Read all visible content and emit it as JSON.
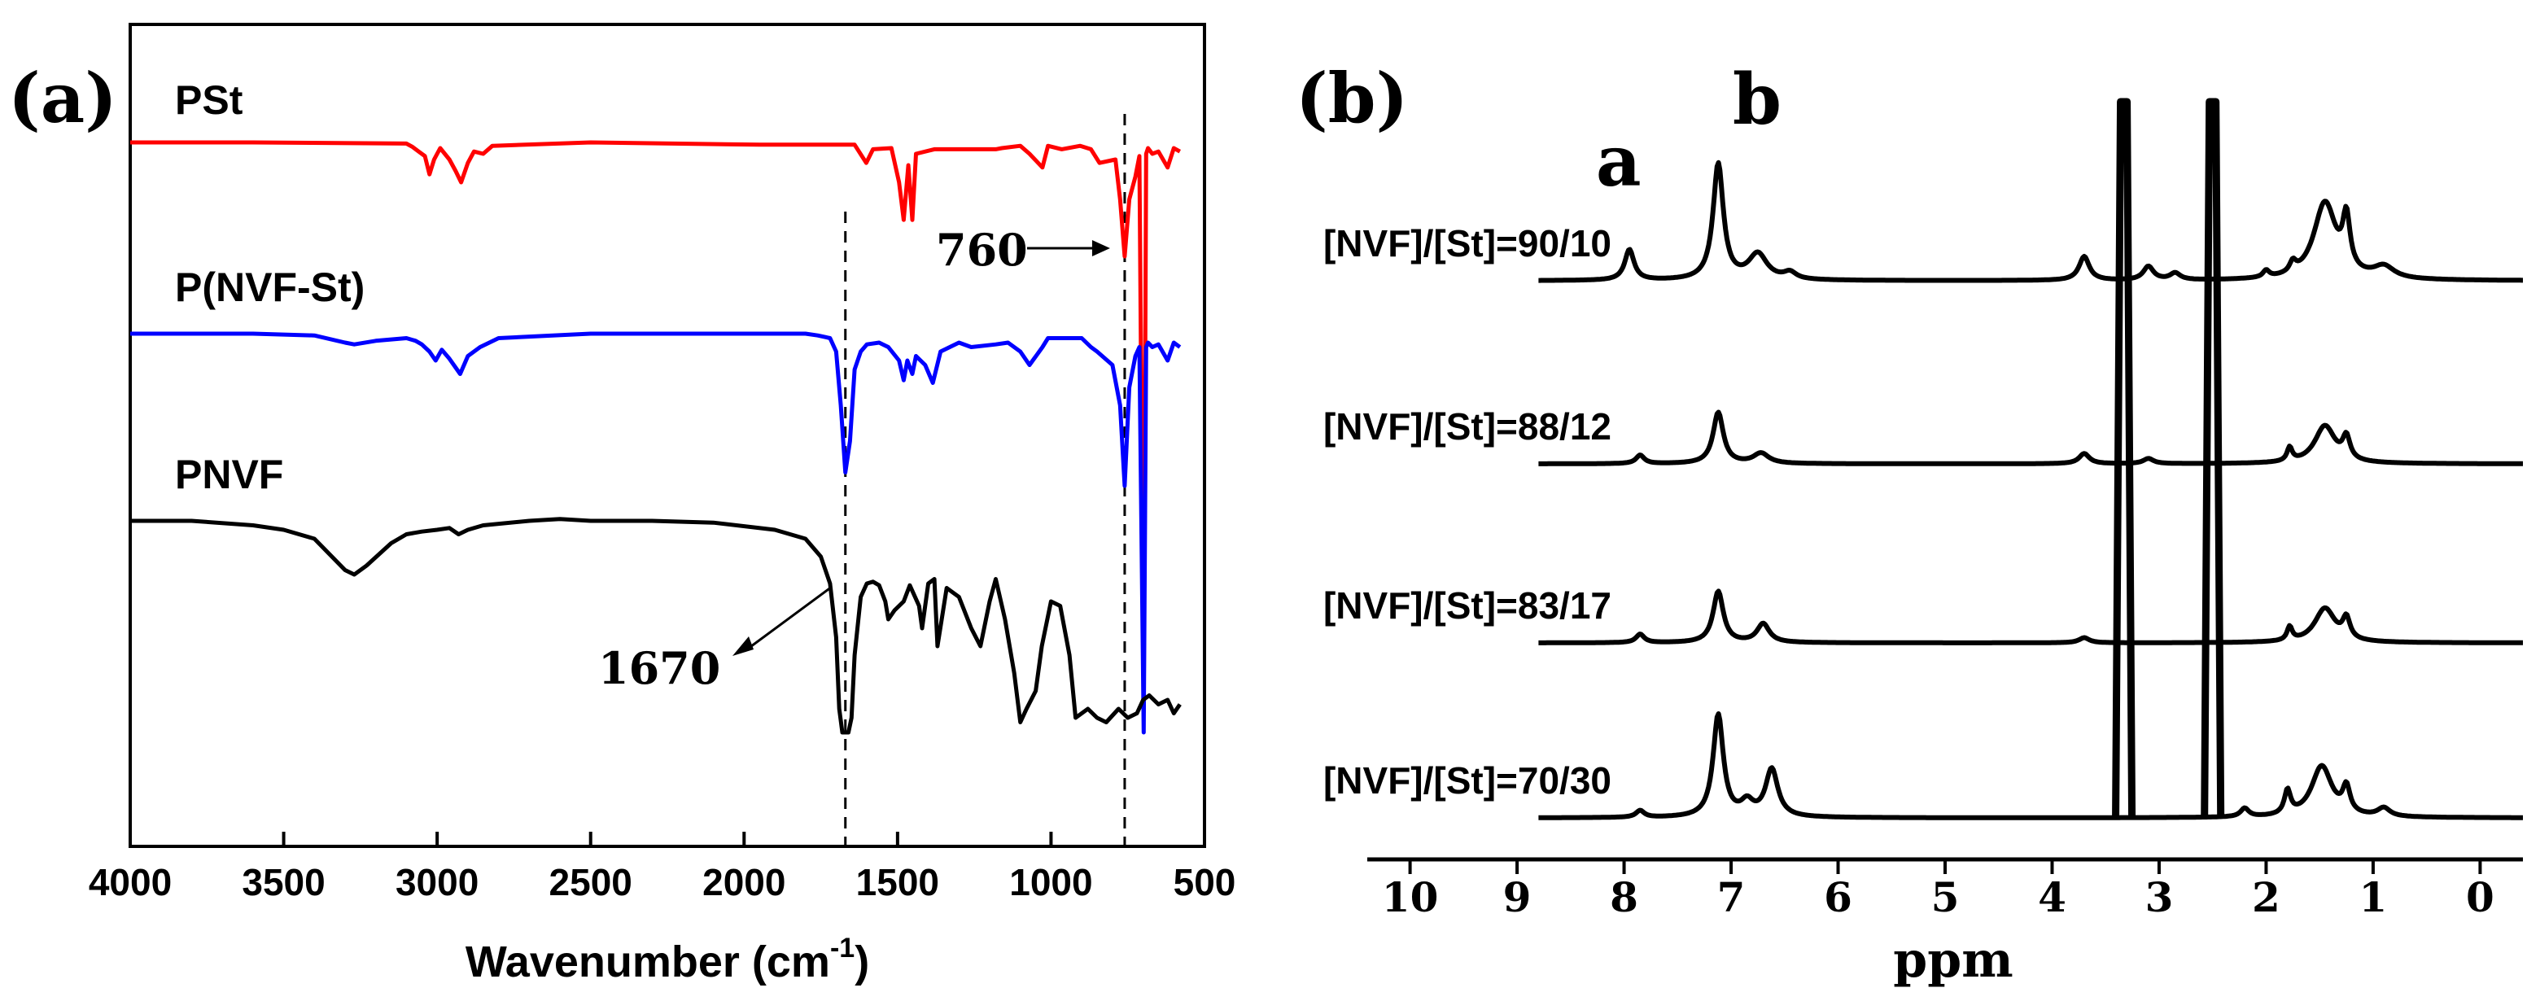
{
  "chart_data": [
    {
      "panel": "(a)",
      "type": "line",
      "xlabel": "Wavenumber (cm",
      "xlabel_sup": "-1",
      "xlabel_close": ")",
      "xlim": [
        4000,
        500
      ],
      "xticks": [
        4000,
        3500,
        3000,
        2500,
        2000,
        1500,
        1000,
        500
      ],
      "series": [
        {
          "name": "PSt",
          "color": "#ff0000",
          "baseline": 0.0,
          "x": [
            4000,
            3600,
            3100,
            3080,
            3060,
            3040,
            3025,
            3010,
            2990,
            2960,
            2940,
            2922,
            2900,
            2880,
            2850,
            2820,
            2500,
            1950,
            1870,
            1800,
            1680,
            1640,
            1602,
            1580,
            1520,
            1495,
            1480,
            1465,
            1452,
            1440,
            1380,
            1180,
            1160,
            1100,
            1070,
            1028,
            1010,
            965,
            905,
            870,
            842,
            790,
            775,
            760,
            745,
            725,
            712,
            698,
            690,
            684,
            670,
            650,
            620,
            600,
            580
          ],
          "y": [
            0.0,
            0.0,
            0.01,
            0.04,
            0.08,
            0.12,
            0.28,
            0.15,
            0.05,
            0.15,
            0.25,
            0.35,
            0.18,
            0.08,
            0.1,
            0.03,
            0.0,
            0.02,
            0.02,
            0.02,
            0.02,
            0.02,
            0.18,
            0.06,
            0.05,
            0.35,
            0.68,
            0.2,
            0.68,
            0.1,
            0.06,
            0.06,
            0.05,
            0.03,
            0.1,
            0.22,
            0.03,
            0.06,
            0.03,
            0.06,
            0.18,
            0.15,
            0.5,
            1.0,
            0.5,
            0.3,
            0.12,
            5.0,
            0.1,
            0.05,
            0.1,
            0.08,
            0.22,
            0.05,
            0.08
          ]
        },
        {
          "name": "P(NVF-St)",
          "color": "#0000ff",
          "baseline": 0.0,
          "x": [
            4000,
            3600,
            3400,
            3300,
            3270,
            3200,
            3100,
            3070,
            3050,
            3025,
            3005,
            2985,
            2960,
            2925,
            2900,
            2860,
            2800,
            2500,
            2000,
            1800,
            1760,
            1720,
            1700,
            1685,
            1670,
            1655,
            1640,
            1620,
            1600,
            1560,
            1530,
            1495,
            1480,
            1468,
            1452,
            1440,
            1410,
            1385,
            1360,
            1300,
            1260,
            1180,
            1140,
            1100,
            1070,
            1028,
            1010,
            900,
            870,
            850,
            800,
            775,
            760,
            745,
            725,
            712,
            698,
            690,
            684,
            670,
            650,
            620,
            600,
            580
          ],
          "y": [
            0.0,
            0.0,
            0.02,
            0.1,
            0.12,
            0.08,
            0.05,
            0.08,
            0.12,
            0.2,
            0.3,
            0.18,
            0.28,
            0.45,
            0.25,
            0.15,
            0.05,
            0.0,
            0.0,
            0.0,
            0.02,
            0.05,
            0.2,
            0.8,
            1.55,
            1.2,
            0.4,
            0.2,
            0.12,
            0.1,
            0.15,
            0.3,
            0.52,
            0.3,
            0.45,
            0.25,
            0.35,
            0.55,
            0.2,
            0.1,
            0.15,
            0.12,
            0.1,
            0.2,
            0.35,
            0.15,
            0.05,
            0.05,
            0.15,
            0.2,
            0.35,
            0.8,
            1.7,
            0.6,
            0.25,
            0.15,
            5.0,
            0.15,
            0.1,
            0.15,
            0.12,
            0.3,
            0.1,
            0.15
          ]
        },
        {
          "name": "PNVF",
          "color": "#000000",
          "baseline": 0.0,
          "x": [
            4000,
            3800,
            3600,
            3500,
            3400,
            3300,
            3270,
            3230,
            3150,
            3100,
            3050,
            3000,
            2960,
            2930,
            2900,
            2850,
            2700,
            2600,
            2500,
            2300,
            2100,
            1900,
            1800,
            1750,
            1720,
            1700,
            1690,
            1680,
            1670,
            1660,
            1650,
            1640,
            1620,
            1600,
            1580,
            1560,
            1540,
            1530,
            1510,
            1480,
            1460,
            1430,
            1420,
            1400,
            1380,
            1370,
            1340,
            1300,
            1260,
            1230,
            1200,
            1180,
            1150,
            1120,
            1100,
            1080,
            1050,
            1030,
            1000,
            970,
            940,
            920,
            880,
            850,
            820,
            780,
            750,
            720,
            700,
            680,
            650,
            620,
            600,
            580
          ],
          "y": [
            0.0,
            0.0,
            0.05,
            0.1,
            0.2,
            0.55,
            0.6,
            0.5,
            0.25,
            0.15,
            0.12,
            0.1,
            0.08,
            0.15,
            0.1,
            0.05,
            0.0,
            -0.02,
            0.0,
            0.0,
            0.02,
            0.1,
            0.2,
            0.4,
            0.7,
            1.3,
            2.1,
            3.0,
            3.0,
            2.6,
            2.2,
            1.5,
            0.85,
            0.7,
            0.68,
            0.72,
            0.9,
            1.1,
            1.0,
            0.9,
            0.72,
            0.95,
            1.2,
            0.7,
            0.65,
            1.4,
            0.75,
            0.85,
            1.2,
            1.4,
            0.9,
            0.65,
            1.1,
            1.7,
            2.25,
            2.1,
            1.9,
            1.4,
            0.9,
            0.95,
            1.5,
            2.2,
            2.1,
            2.2,
            2.25,
            2.1,
            2.2,
            2.15,
            2.0,
            1.95,
            2.05,
            2.0,
            2.15,
            2.05
          ]
        }
      ],
      "series_labels": [
        "PSt",
        "P(NVF-St)",
        "PNVF"
      ],
      "dashed_lines": [
        1670,
        760
      ],
      "annotations": [
        {
          "text": "760",
          "points_to": 760
        },
        {
          "text": "1670",
          "points_to": 1670
        }
      ]
    },
    {
      "panel": "(b)",
      "type": "line",
      "xlabel": "ppm",
      "xlim": [
        10.4,
        -0.4
      ],
      "xticks": [
        10,
        9,
        8,
        7,
        6,
        5,
        4,
        3,
        2,
        1,
        0
      ],
      "peak_labels": [
        {
          "text": "a",
          "ppm": 7.9
        },
        {
          "text": "b",
          "ppm": 7.1
        }
      ],
      "solvent_peaks": [
        3.33,
        2.5
      ],
      "color": "#000000",
      "series": [
        {
          "name": "[NVF]/[St]=90/10",
          "peaks": [
            {
              "center": 7.95,
              "height": 0.18,
              "width": 0.09
            },
            {
              "center": 7.12,
              "height": 0.68,
              "width": 0.1
            },
            {
              "center": 6.75,
              "height": 0.15,
              "width": 0.18
            },
            {
              "center": 6.45,
              "height": 0.04,
              "width": 0.12
            },
            {
              "center": 3.7,
              "height": 0.14,
              "width": 0.1
            },
            {
              "center": 3.1,
              "height": 0.08,
              "width": 0.1
            },
            {
              "center": 2.85,
              "height": 0.04,
              "width": 0.1
            },
            {
              "center": 2.0,
              "height": 0.04,
              "width": 0.06
            },
            {
              "center": 1.75,
              "height": 0.06,
              "width": 0.06
            },
            {
              "center": 1.45,
              "height": 0.45,
              "width": 0.22
            },
            {
              "center": 1.25,
              "height": 0.3,
              "width": 0.07
            },
            {
              "center": 0.9,
              "height": 0.07,
              "width": 0.2
            }
          ]
        },
        {
          "name": "[NVF]/[St]=88/12",
          "peaks": [
            {
              "center": 7.85,
              "height": 0.05,
              "width": 0.08
            },
            {
              "center": 7.12,
              "height": 0.3,
              "width": 0.1
            },
            {
              "center": 6.72,
              "height": 0.06,
              "width": 0.15
            },
            {
              "center": 3.7,
              "height": 0.06,
              "width": 0.1
            },
            {
              "center": 3.1,
              "height": 0.03,
              "width": 0.1
            },
            {
              "center": 1.78,
              "height": 0.08,
              "width": 0.05
            },
            {
              "center": 1.45,
              "height": 0.22,
              "width": 0.2
            },
            {
              "center": 1.25,
              "height": 0.13,
              "width": 0.07
            }
          ]
        },
        {
          "name": "[NVF]/[St]=83/17",
          "peaks": [
            {
              "center": 7.85,
              "height": 0.05,
              "width": 0.08
            },
            {
              "center": 7.12,
              "height": 0.3,
              "width": 0.1
            },
            {
              "center": 6.7,
              "height": 0.11,
              "width": 0.12
            },
            {
              "center": 3.7,
              "height": 0.03,
              "width": 0.1
            },
            {
              "center": 1.78,
              "height": 0.08,
              "width": 0.05
            },
            {
              "center": 1.45,
              "height": 0.2,
              "width": 0.2
            },
            {
              "center": 1.25,
              "height": 0.12,
              "width": 0.07
            }
          ]
        },
        {
          "name": "[NVF]/[St]=70/30",
          "peaks": [
            {
              "center": 7.85,
              "height": 0.04,
              "width": 0.08
            },
            {
              "center": 7.12,
              "height": 0.6,
              "width": 0.1
            },
            {
              "center": 6.62,
              "height": 0.28,
              "width": 0.12
            },
            {
              "center": 6.85,
              "height": 0.08,
              "width": 0.12
            },
            {
              "center": 2.2,
              "height": 0.05,
              "width": 0.08
            },
            {
              "center": 1.8,
              "height": 0.14,
              "width": 0.06
            },
            {
              "center": 1.48,
              "height": 0.3,
              "width": 0.2
            },
            {
              "center": 1.25,
              "height": 0.15,
              "width": 0.07
            },
            {
              "center": 0.9,
              "height": 0.05,
              "width": 0.12
            }
          ]
        }
      ]
    }
  ]
}
